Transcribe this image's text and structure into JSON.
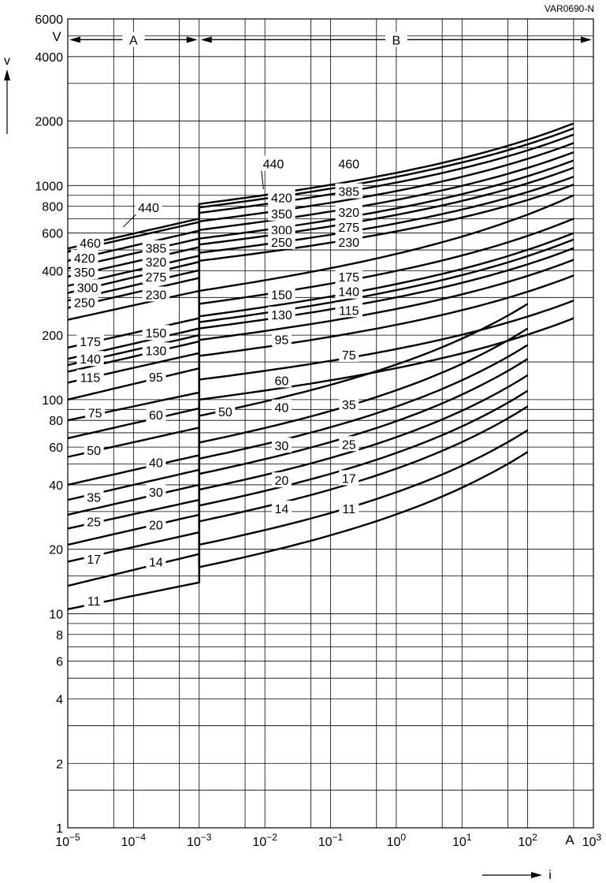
{
  "ref_code": "VAR0690-N",
  "chart_data": {
    "type": "line",
    "title": "",
    "xlabel": "i",
    "ylabel": "v",
    "x_unit": "A",
    "y_unit": "V",
    "x_scale": "log",
    "y_scale": "log",
    "xlim": [
      1e-05,
      1000
    ],
    "ylim": [
      1,
      6000
    ],
    "grid": true,
    "x_ticks": [
      {
        "value": 1e-05,
        "mant": "10",
        "exp": "−5"
      },
      {
        "value": 0.0001,
        "mant": "10",
        "exp": "−4"
      },
      {
        "value": 0.001,
        "mant": "10",
        "exp": "−3"
      },
      {
        "value": 0.01,
        "mant": "10",
        "exp": "−2"
      },
      {
        "value": 0.1,
        "mant": "10",
        "exp": "−1"
      },
      {
        "value": 1,
        "mant": "10",
        "exp": "0"
      },
      {
        "value": 10,
        "mant": "10",
        "exp": "1"
      },
      {
        "value": 100,
        "mant": "10",
        "exp": "2"
      },
      {
        "value": 1000,
        "mant": "10",
        "exp": "3"
      }
    ],
    "y_ticks": [
      {
        "value": 1,
        "label": "1"
      },
      {
        "value": 2,
        "label": "2"
      },
      {
        "value": 4,
        "label": "4"
      },
      {
        "value": 6,
        "label": "6"
      },
      {
        "value": 8,
        "label": "8"
      },
      {
        "value": 10,
        "label": "10"
      },
      {
        "value": 20,
        "label": "20"
      },
      {
        "value": 40,
        "label": "40"
      },
      {
        "value": 60,
        "label": "60"
      },
      {
        "value": 80,
        "label": "80"
      },
      {
        "value": 100,
        "label": "100"
      },
      {
        "value": 200,
        "label": "200"
      },
      {
        "value": 400,
        "label": "400"
      },
      {
        "value": 600,
        "label": "600"
      },
      {
        "value": 800,
        "label": "800"
      },
      {
        "value": 1000,
        "label": "1000"
      },
      {
        "value": 2000,
        "label": "2000"
      },
      {
        "value": 4000,
        "label": "4000"
      },
      {
        "value": 6000,
        "label": "6000"
      }
    ],
    "y_grid_values": [
      1,
      1.5,
      2,
      3,
      4,
      5,
      6,
      7,
      8,
      9,
      10,
      15,
      20,
      30,
      40,
      50,
      60,
      70,
      80,
      90,
      100,
      150,
      200,
      300,
      400,
      500,
      600,
      700,
      800,
      900,
      1000,
      1500,
      2000,
      3000,
      4000,
      5000
    ],
    "x_grid_values": [
      1e-05,
      5e-05,
      0.0001,
      0.0005,
      0.001,
      0.005,
      0.01,
      0.05,
      0.1,
      0.5,
      1,
      5,
      10,
      50,
      100,
      500,
      1000
    ],
    "region_a": {
      "label": "A",
      "from": 1e-05,
      "to": 0.001
    },
    "region_b": {
      "label": "B",
      "from": 0.001,
      "to": 1000
    },
    "region_arrow_y": 4800,
    "boundary_x": 0.001,
    "boundary_from": 16.5,
    "boundary_to": 820,
    "series": [
      {
        "name": "460",
        "a_from": 508,
        "a_to": 700,
        "b_from": 820,
        "b_to": 1950,
        "b_end_x": 500
      },
      {
        "name": "440",
        "a_from": 490,
        "a_to": 675,
        "b_from": 790,
        "b_to": 1850,
        "b_end_x": 500
      },
      {
        "name": "420",
        "a_from": 445,
        "a_to": 615,
        "b_from": 745,
        "b_to": 1730,
        "b_end_x": 500
      },
      {
        "name": "385",
        "a_from": 410,
        "a_to": 565,
        "b_from": 680,
        "b_to": 1580,
        "b_end_x": 500
      },
      {
        "name": "350",
        "a_from": 375,
        "a_to": 515,
        "b_from": 620,
        "b_to": 1430,
        "b_end_x": 500
      },
      {
        "name": "320",
        "a_from": 340,
        "a_to": 470,
        "b_from": 565,
        "b_to": 1310,
        "b_end_x": 500
      },
      {
        "name": "300",
        "a_from": 315,
        "a_to": 440,
        "b_from": 530,
        "b_to": 1210,
        "b_end_x": 500
      },
      {
        "name": "275",
        "a_from": 290,
        "a_to": 402,
        "b_from": 485,
        "b_to": 1100,
        "b_end_x": 500
      },
      {
        "name": "250",
        "a_from": 268,
        "a_to": 370,
        "b_from": 445,
        "b_to": 1010,
        "b_end_x": 500
      },
      {
        "name": "230",
        "a_from": 236,
        "a_to": 322,
        "b_from": 322,
        "b_to": 900,
        "b_end_x": 500
      },
      {
        "name": "175",
        "a_from": 175,
        "a_to": 240,
        "b_from": 280,
        "b_to": 700,
        "b_end_x": 500
      },
      {
        "name": "150",
        "a_from": 155,
        "a_to": 215,
        "b_from": 245,
        "b_to": 600,
        "b_end_x": 500
      },
      {
        "name": "140",
        "a_from": 145,
        "a_to": 200,
        "b_from": 230,
        "b_to": 560,
        "b_end_x": 500
      },
      {
        "name": "130",
        "a_from": 135,
        "a_to": 187,
        "b_from": 215,
        "b_to": 510,
        "b_end_x": 500
      },
      {
        "name": "115",
        "a_from": 120,
        "a_to": 165,
        "b_from": 190,
        "b_to": 450,
        "b_end_x": 500
      },
      {
        "name": "95",
        "a_from": 100,
        "a_to": 140,
        "b_from": 160,
        "b_to": 380,
        "b_end_x": 500
      },
      {
        "name": "75",
        "a_from": 80,
        "a_to": 108,
        "b_from": 124,
        "b_to": 290,
        "b_end_x": 500
      },
      {
        "name": "60",
        "a_from": 66,
        "a_to": 91,
        "b_from": 100,
        "b_to": 240,
        "b_end_x": 500
      },
      {
        "name": "50",
        "a_from": 54,
        "a_to": 74,
        "b_from": 84,
        "b_to": 280,
        "b_end_x": 100
      },
      {
        "name": "40",
        "a_from": 40,
        "a_to": 55,
        "b_from": 63,
        "b_to": 215,
        "b_end_x": 100
      },
      {
        "name": "35",
        "a_from": 34,
        "a_to": 47,
        "b_from": 53,
        "b_to": 180,
        "b_end_x": 100
      },
      {
        "name": "30",
        "a_from": 29,
        "a_to": 40,
        "b_from": 45,
        "b_to": 155,
        "b_end_x": 100
      },
      {
        "name": "25",
        "a_from": 25,
        "a_to": 34,
        "b_from": 38,
        "b_to": 130,
        "b_end_x": 100
      },
      {
        "name": "20",
        "a_from": 21,
        "a_to": 29,
        "b_from": 32,
        "b_to": 110,
        "b_end_x": 100
      },
      {
        "name": "17",
        "a_from": 17.5,
        "a_to": 24,
        "b_from": 27,
        "b_to": 93,
        "b_end_x": 100
      },
      {
        "name": "14",
        "a_from": 13.5,
        "a_to": 19,
        "b_from": 21,
        "b_to": 72,
        "b_end_x": 100
      },
      {
        "name": "11",
        "a_from": 10.5,
        "a_to": 14,
        "b_from": 16.5,
        "b_to": 57,
        "b_end_x": 100
      }
    ],
    "curve_labels": [
      {
        "text": "460",
        "x": 2.2e-05,
        "y": 540
      },
      {
        "text": "420",
        "x": 1.8e-05,
        "y": 460
      },
      {
        "text": "350",
        "x": 1.8e-05,
        "y": 395
      },
      {
        "text": "300",
        "x": 2e-05,
        "y": 335
      },
      {
        "text": "250",
        "x": 1.8e-05,
        "y": 285
      },
      {
        "text": "175",
        "x": 2.2e-05,
        "y": 187
      },
      {
        "text": "140",
        "x": 2.2e-05,
        "y": 155
      },
      {
        "text": "115",
        "x": 2.2e-05,
        "y": 127
      },
      {
        "text": "75",
        "x": 2.6e-05,
        "y": 87
      },
      {
        "text": "50",
        "x": 2.5e-05,
        "y": 58
      },
      {
        "text": "35",
        "x": 2.5e-05,
        "y": 35
      },
      {
        "text": "25",
        "x": 2.5e-05,
        "y": 27
      },
      {
        "text": "17",
        "x": 2.5e-05,
        "y": 18
      },
      {
        "text": "11",
        "x": 2.5e-05,
        "y": 11.5
      },
      {
        "text": "440",
        "x": 0.00017,
        "y": 790,
        "leader": {
          "x": 7e-05,
          "y": 640
        }
      },
      {
        "text": "385",
        "x": 0.00022,
        "y": 510
      },
      {
        "text": "320",
        "x": 0.00022,
        "y": 440
      },
      {
        "text": "275",
        "x": 0.00022,
        "y": 375
      },
      {
        "text": "230",
        "x": 0.00022,
        "y": 310
      },
      {
        "text": "150",
        "x": 0.00022,
        "y": 205
      },
      {
        "text": "130",
        "x": 0.00022,
        "y": 170
      },
      {
        "text": "95",
        "x": 0.00022,
        "y": 128
      },
      {
        "text": "60",
        "x": 0.00022,
        "y": 85
      },
      {
        "text": "40",
        "x": 0.00022,
        "y": 51
      },
      {
        "text": "30",
        "x": 0.00022,
        "y": 37
      },
      {
        "text": "20",
        "x": 0.00022,
        "y": 26
      },
      {
        "text": "14",
        "x": 0.00022,
        "y": 17.5
      },
      {
        "text": "440",
        "x": 0.0135,
        "y": 1265,
        "leader": {
          "x": 0.0095,
          "y": 960
        }
      },
      {
        "text": "420",
        "x": 0.018,
        "y": 880
      },
      {
        "text": "350",
        "x": 0.018,
        "y": 740
      },
      {
        "text": "300",
        "x": 0.018,
        "y": 620
      },
      {
        "text": "250",
        "x": 0.018,
        "y": 545
      },
      {
        "text": "150",
        "x": 0.018,
        "y": 310
      },
      {
        "text": "130",
        "x": 0.018,
        "y": 250
      },
      {
        "text": "95",
        "x": 0.018,
        "y": 191
      },
      {
        "text": "60",
        "x": 0.018,
        "y": 123
      },
      {
        "text": "50",
        "x": 0.0025,
        "y": 88
      },
      {
        "text": "40",
        "x": 0.018,
        "y": 92
      },
      {
        "text": "30",
        "x": 0.018,
        "y": 61
      },
      {
        "text": "20",
        "x": 0.018,
        "y": 42
      },
      {
        "text": "14",
        "x": 0.018,
        "y": 31
      },
      {
        "text": "460",
        "x": 0.19,
        "y": 1265
      },
      {
        "text": "385",
        "x": 0.19,
        "y": 940
      },
      {
        "text": "320",
        "x": 0.19,
        "y": 750
      },
      {
        "text": "275",
        "x": 0.19,
        "y": 640
      },
      {
        "text": "230",
        "x": 0.19,
        "y": 545
      },
      {
        "text": "175",
        "x": 0.19,
        "y": 375
      },
      {
        "text": "140",
        "x": 0.19,
        "y": 320
      },
      {
        "text": "115",
        "x": 0.19,
        "y": 262
      },
      {
        "text": "75",
        "x": 0.19,
        "y": 162
      },
      {
        "text": "35",
        "x": 0.19,
        "y": 95
      },
      {
        "text": "25",
        "x": 0.19,
        "y": 62
      },
      {
        "text": "17",
        "x": 0.19,
        "y": 43
      },
      {
        "text": "11",
        "x": 0.19,
        "y": 31
      }
    ]
  }
}
